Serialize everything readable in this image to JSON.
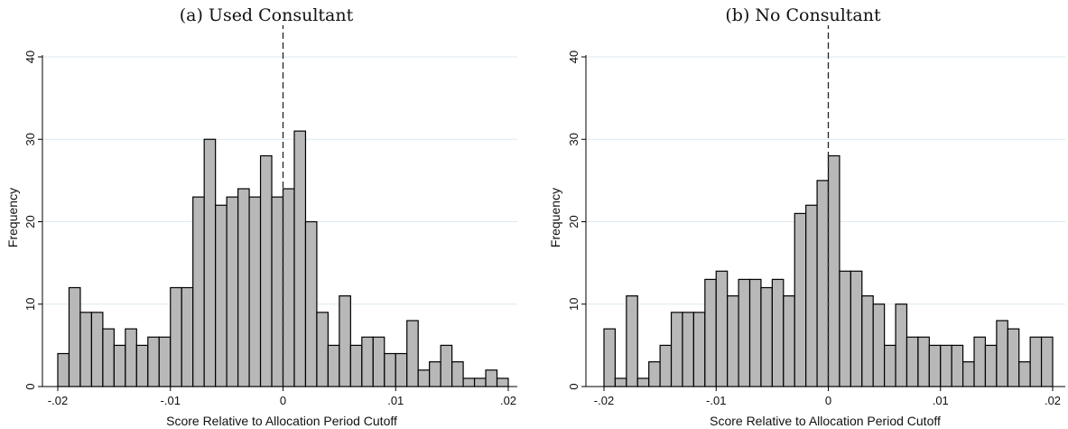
{
  "chart_data": [
    {
      "type": "bar",
      "title": "(a)  Used Consultant",
      "xlabel": "Score Relative to Allocation Period Cutoff",
      "ylabel": "Frequency",
      "xlim": [
        -0.02,
        0.02
      ],
      "ylim": [
        0,
        40
      ],
      "xticks": [
        -0.02,
        -0.01,
        0,
        0.01,
        0.02
      ],
      "xticklabels": [
        "-.02",
        "-.01",
        "0",
        ".01",
        ".02"
      ],
      "yticks": [
        0,
        10,
        20,
        30,
        40
      ],
      "yticklabels": [
        "0",
        "10",
        "20",
        "30",
        "40"
      ],
      "grid": true,
      "cutoff_line": 0,
      "bins": {
        "start": -0.02,
        "width": 0.001
      },
      "values": [
        4,
        12,
        9,
        9,
        7,
        5,
        7,
        5,
        6,
        6,
        12,
        12,
        23,
        30,
        22,
        23,
        24,
        23,
        28,
        23,
        24,
        31,
        20,
        9,
        5,
        11,
        5,
        6,
        6,
        4,
        4,
        8,
        2,
        3,
        5,
        3,
        1,
        1,
        2,
        1
      ]
    },
    {
      "type": "bar",
      "title": "(b)  No Consultant",
      "xlabel": "Score Relative to Allocation Period Cutoff",
      "ylabel": "Frequency",
      "xlim": [
        -0.02,
        0.02
      ],
      "ylim": [
        0,
        40
      ],
      "xticks": [
        -0.02,
        -0.01,
        0,
        0.01,
        0.02
      ],
      "xticklabels": [
        "-.02",
        "-.01",
        "0",
        ".01",
        ".02"
      ],
      "yticks": [
        0,
        10,
        20,
        30,
        40
      ],
      "yticklabels": [
        "0",
        "10",
        "20",
        "30",
        "40"
      ],
      "grid": true,
      "cutoff_line": 0,
      "bins": {
        "start": -0.02,
        "width": 0.001
      },
      "values": [
        7,
        1,
        11,
        1,
        3,
        5,
        9,
        9,
        9,
        13,
        14,
        11,
        13,
        13,
        12,
        13,
        11,
        21,
        22,
        25,
        28,
        14,
        14,
        11,
        10,
        5,
        10,
        6,
        6,
        5,
        5,
        5,
        3,
        6,
        5,
        8,
        7,
        3,
        6,
        6
      ]
    }
  ],
  "colors": {
    "bar_fill": "#b8b8b8",
    "bar_stroke": "#000000",
    "grid": "#dce9f0",
    "axis": "#000000"
  }
}
